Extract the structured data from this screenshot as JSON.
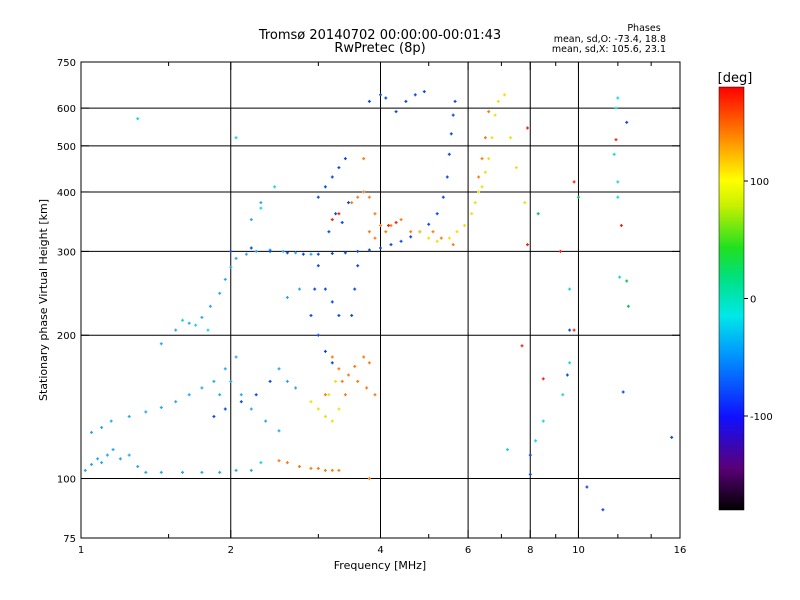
{
  "chart_data": {
    "type": "scatter",
    "title": "Tromsø 20140702 00:00:00-00:01:43",
    "subtitle": "RwPretec (8p)",
    "stats": {
      "title": "Phases",
      "line1": "mean, sd,O: -73.4, 18.8",
      "line2": "mean, sd,X: 105.6, 23.1"
    },
    "xlabel": "Frequency [MHz]",
    "ylabel": "Stationary phase Virtual Height [km]",
    "xscale": "log",
    "yscale": "log",
    "xlim": [
      1,
      16
    ],
    "ylim": [
      75,
      750
    ],
    "xticks": [
      1,
      2,
      4,
      6,
      8,
      10,
      16
    ],
    "xtick_labels": [
      "1",
      "2",
      "4",
      "6",
      "8",
      "10",
      "16"
    ],
    "xminor": [
      1.5,
      3,
      5,
      7,
      9,
      12,
      14
    ],
    "yticks": [
      75,
      100,
      200,
      300,
      400,
      500,
      600,
      750
    ],
    "ytick_labels": [
      "75",
      "100",
      "200",
      "300",
      "400",
      "500",
      "600",
      "750"
    ],
    "xgrid": [
      2,
      4,
      6,
      8,
      10
    ],
    "ygrid": [
      100,
      200,
      300,
      400,
      500,
      600
    ],
    "grid": true,
    "colorbar": {
      "label": "[deg]",
      "range": [
        -180,
        180
      ],
      "ticks": [
        100,
        0,
        -100
      ],
      "tick_labels": [
        "100",
        "0",
        "-100"
      ]
    },
    "series": [
      {
        "color": "#2aa9e8",
        "phase": -60,
        "points": [
          [
            1.02,
            104
          ],
          [
            1.05,
            107
          ],
          [
            1.08,
            110
          ],
          [
            1.1,
            108
          ],
          [
            1.13,
            112
          ],
          [
            1.16,
            115
          ],
          [
            1.2,
            110
          ],
          [
            1.25,
            112
          ],
          [
            1.3,
            106
          ],
          [
            1.35,
            103
          ],
          [
            1.45,
            103
          ],
          [
            1.6,
            103
          ],
          [
            1.75,
            103
          ],
          [
            1.9,
            103
          ],
          [
            2.05,
            104
          ],
          [
            2.2,
            104
          ],
          [
            1.05,
            125
          ],
          [
            1.1,
            128
          ],
          [
            1.15,
            132
          ],
          [
            1.25,
            135
          ],
          [
            1.35,
            138
          ],
          [
            1.45,
            141
          ],
          [
            1.55,
            145
          ],
          [
            1.65,
            150
          ],
          [
            1.75,
            155
          ],
          [
            1.85,
            160
          ],
          [
            1.95,
            170
          ],
          [
            2.05,
            180
          ],
          [
            1.45,
            192
          ],
          [
            1.55,
            205
          ],
          [
            1.65,
            212
          ],
          [
            1.75,
            218
          ],
          [
            1.82,
            230
          ],
          [
            1.9,
            245
          ],
          [
            1.95,
            262
          ],
          [
            2.0,
            278
          ],
          [
            2.05,
            290
          ],
          [
            2.15,
            296
          ],
          [
            2.25,
            300
          ],
          [
            2.4,
            302
          ],
          [
            2.55,
            300
          ],
          [
            2.7,
            298
          ],
          [
            2.9,
            296
          ],
          [
            2.2,
            350
          ],
          [
            2.3,
            380
          ],
          [
            2.1,
            150
          ],
          [
            2.2,
            140
          ],
          [
            2.35,
            132
          ],
          [
            2.5,
            126
          ],
          [
            1.9,
            150
          ],
          [
            2.0,
            160
          ],
          [
            2.5,
            170
          ],
          [
            2.6,
            160
          ],
          [
            2.7,
            155
          ],
          [
            2.6,
            240
          ],
          [
            2.75,
            250
          ]
        ]
      },
      {
        "color": "#0a4be0",
        "phase": -95,
        "points": [
          [
            1.85,
            135
          ],
          [
            1.95,
            140
          ],
          [
            2.1,
            145
          ],
          [
            2.25,
            150
          ],
          [
            2.4,
            160
          ],
          [
            2.0,
            300
          ],
          [
            2.2,
            305
          ],
          [
            2.4,
            300
          ],
          [
            2.6,
            298
          ],
          [
            2.8,
            296
          ],
          [
            3.0,
            296
          ],
          [
            3.2,
            297
          ],
          [
            3.4,
            298
          ],
          [
            3.6,
            300
          ],
          [
            3.8,
            302
          ],
          [
            4.0,
            305
          ],
          [
            4.2,
            310
          ],
          [
            4.4,
            315
          ],
          [
            4.6,
            322
          ],
          [
            4.8,
            330
          ],
          [
            5.0,
            342
          ],
          [
            5.2,
            360
          ],
          [
            5.35,
            390
          ],
          [
            5.45,
            430
          ],
          [
            5.5,
            480
          ],
          [
            5.55,
            530
          ],
          [
            5.6,
            580
          ],
          [
            5.65,
            620
          ],
          [
            3.0,
            390
          ],
          [
            3.1,
            410
          ],
          [
            3.2,
            430
          ],
          [
            3.3,
            450
          ],
          [
            3.4,
            470
          ],
          [
            3.25,
            360
          ],
          [
            3.35,
            345
          ],
          [
            3.15,
            330
          ],
          [
            3.45,
            380
          ],
          [
            3.1,
            250
          ],
          [
            3.2,
            235
          ],
          [
            3.3,
            220
          ],
          [
            3.0,
            200
          ],
          [
            3.1,
            185
          ],
          [
            3.2,
            175
          ],
          [
            3.5,
            220
          ],
          [
            3.55,
            250
          ],
          [
            3.6,
            280
          ],
          [
            4.3,
            590
          ],
          [
            4.5,
            620
          ],
          [
            4.7,
            640
          ],
          [
            4.9,
            650
          ],
          [
            4.1,
            630
          ],
          [
            3.8,
            620
          ],
          [
            4.0,
            640
          ],
          [
            2.9,
            220
          ],
          [
            2.95,
            250
          ],
          [
            3.0,
            280
          ],
          [
            9.6,
            205
          ],
          [
            9.5,
            165
          ],
          [
            12.3,
            152
          ],
          [
            15.4,
            122
          ],
          [
            8.0,
            102
          ],
          [
            8.0,
            112
          ],
          [
            11.2,
            86
          ],
          [
            12.5,
            560
          ],
          [
            10.4,
            96
          ]
        ]
      },
      {
        "color": "#ff7a10",
        "phase": 150,
        "points": [
          [
            3.5,
            380
          ],
          [
            3.6,
            390
          ],
          [
            3.7,
            400
          ],
          [
            3.8,
            390
          ],
          [
            3.9,
            360
          ],
          [
            4.0,
            340
          ],
          [
            4.1,
            330
          ],
          [
            3.8,
            330
          ],
          [
            3.9,
            320
          ],
          [
            4.2,
            340
          ],
          [
            4.4,
            350
          ],
          [
            4.6,
            330
          ],
          [
            5.1,
            330
          ],
          [
            5.3,
            320
          ],
          [
            5.6,
            310
          ],
          [
            3.45,
            165
          ],
          [
            3.55,
            172
          ],
          [
            3.7,
            180
          ],
          [
            3.8,
            175
          ],
          [
            3.6,
            160
          ],
          [
            3.75,
            155
          ],
          [
            3.9,
            150
          ],
          [
            3.2,
            180
          ],
          [
            3.3,
            170
          ],
          [
            3.35,
            160
          ],
          [
            3.4,
            150
          ],
          [
            3.1,
            150
          ],
          [
            6.4,
            470
          ],
          [
            6.3,
            430
          ],
          [
            6.5,
            520
          ],
          [
            6.6,
            590
          ],
          [
            2.5,
            109
          ],
          [
            2.6,
            108
          ],
          [
            2.75,
            106
          ],
          [
            2.9,
            105
          ],
          [
            3.0,
            105
          ],
          [
            3.1,
            104
          ],
          [
            3.2,
            104
          ],
          [
            3.3,
            104
          ],
          [
            3.8,
            100
          ],
          [
            3.7,
            470
          ]
        ]
      },
      {
        "color": "#f0e000",
        "phase": 110,
        "points": [
          [
            2.9,
            145
          ],
          [
            3.0,
            140
          ],
          [
            3.1,
            135
          ],
          [
            3.2,
            132
          ],
          [
            3.3,
            140
          ],
          [
            3.15,
            150
          ],
          [
            3.25,
            160
          ],
          [
            5.5,
            320
          ],
          [
            5.7,
            330
          ],
          [
            5.9,
            340
          ],
          [
            6.1,
            360
          ],
          [
            6.2,
            380
          ],
          [
            6.3,
            400
          ],
          [
            6.4,
            410
          ],
          [
            6.5,
            440
          ],
          [
            6.6,
            470
          ],
          [
            6.7,
            520
          ],
          [
            6.8,
            580
          ],
          [
            6.9,
            620
          ],
          [
            7.1,
            640
          ],
          [
            7.3,
            520
          ],
          [
            7.5,
            450
          ],
          [
            7.8,
            380
          ],
          [
            4.8,
            330
          ],
          [
            5.0,
            320
          ],
          [
            5.2,
            315
          ]
        ]
      },
      {
        "color": "#10d8e8",
        "phase": -40,
        "points": [
          [
            1.3,
            570
          ],
          [
            2.05,
            520
          ],
          [
            2.3,
            370
          ],
          [
            2.45,
            410
          ],
          [
            1.6,
            215
          ],
          [
            1.7,
            210
          ],
          [
            1.8,
            205
          ],
          [
            12.0,
            390
          ],
          [
            12.0,
            420
          ],
          [
            11.8,
            480
          ],
          [
            11.9,
            600
          ],
          [
            12.0,
            630
          ],
          [
            12.1,
            265
          ],
          [
            9.6,
            250
          ],
          [
            9.3,
            150
          ],
          [
            9.6,
            175
          ],
          [
            8.5,
            132
          ],
          [
            8.2,
            120
          ],
          [
            7.2,
            115
          ],
          [
            2.3,
            108
          ]
        ]
      },
      {
        "color": "#ff2010",
        "phase": 170,
        "points": [
          [
            4.15,
            340
          ],
          [
            4.3,
            345
          ],
          [
            7.7,
            190
          ],
          [
            8.5,
            162
          ],
          [
            9.8,
            420
          ],
          [
            11.9,
            515
          ],
          [
            12.2,
            340
          ],
          [
            7.9,
            310
          ],
          [
            9.2,
            300
          ],
          [
            3.2,
            350
          ],
          [
            3.3,
            360
          ],
          [
            7.9,
            545
          ],
          [
            9.8,
            205
          ]
        ]
      },
      {
        "color": "#00c850",
        "phase": 30,
        "points": [
          [
            12.6,
            230
          ],
          [
            12.5,
            260
          ],
          [
            10.0,
            390
          ],
          [
            8.3,
            360
          ]
        ]
      }
    ]
  }
}
